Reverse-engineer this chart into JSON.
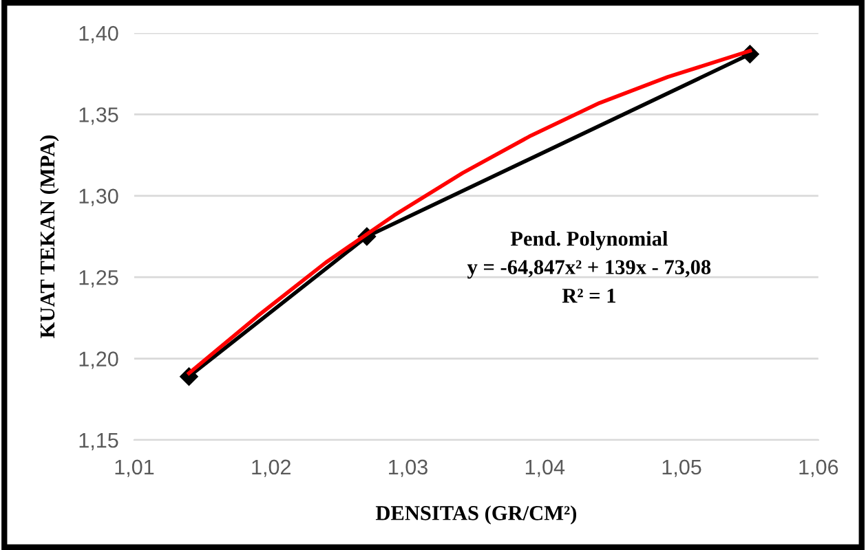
{
  "chart_data": {
    "type": "line",
    "xlabel": "DENSITAS (GR/CM²)",
    "ylabel": "KUAT TEKAN (MPA)",
    "series": [
      {
        "color": "#000000",
        "marker": "diamond",
        "x": [
          1.014,
          1.027,
          1.055
        ],
        "values": [
          1.189,
          1.275,
          1.387
        ]
      },
      {
        "color": "#ff0000",
        "x": [
          1.014,
          1.019,
          1.024,
          1.029,
          1.034,
          1.039,
          1.044,
          1.049,
          1.055
        ],
        "values": [
          1.191,
          1.226,
          1.259,
          1.288,
          1.314,
          1.337,
          1.357,
          1.373,
          1.389
        ]
      }
    ],
    "annotations": [
      "Pend. Polynomial",
      "y = -64,847x² + 139x - 73,08",
      "R² = 1"
    ],
    "xlim": [
      1.01,
      1.06
    ],
    "xticks": [
      {
        "value": 1.01,
        "label": "1,01"
      },
      {
        "value": 1.02,
        "label": "1,02"
      },
      {
        "value": 1.03,
        "label": "1,03"
      },
      {
        "value": 1.04,
        "label": "1,04"
      },
      {
        "value": 1.05,
        "label": "1,05"
      },
      {
        "value": 1.06,
        "label": "1,06"
      }
    ],
    "ylim": [
      1.15,
      1.4
    ],
    "yticks": [
      {
        "value": 1.15,
        "label": "1,15"
      },
      {
        "value": 1.2,
        "label": "1,20"
      },
      {
        "value": 1.25,
        "label": "1,25"
      },
      {
        "value": 1.3,
        "label": "1,30"
      },
      {
        "value": 1.35,
        "label": "1,35"
      },
      {
        "value": 1.4,
        "label": "1,40"
      }
    ],
    "grid": "y",
    "legend": false
  }
}
